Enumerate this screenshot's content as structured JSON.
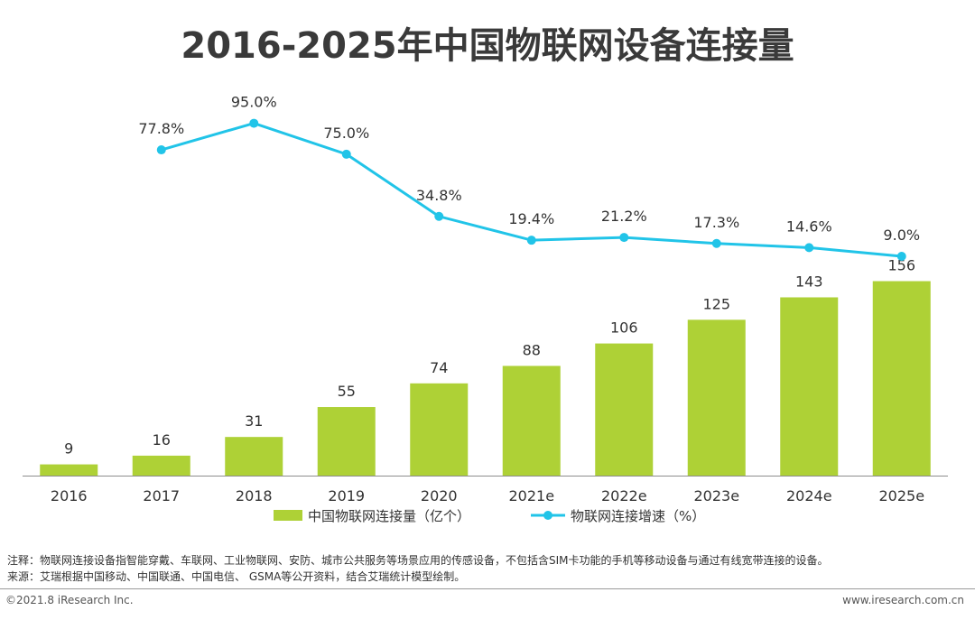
{
  "chart_data": {
    "title": "2016-2025年中国物联网设备连接量",
    "type": "bar+line",
    "categories": [
      "2016",
      "2017",
      "2018",
      "2019",
      "2020",
      "2021e",
      "2022e",
      "2023e",
      "2024e",
      "2025e"
    ],
    "series": [
      {
        "name": "中国物联网连接量（亿个）",
        "type": "bar",
        "color": "#aed136",
        "values": [
          9,
          16,
          31,
          55,
          74,
          88,
          106,
          125,
          143,
          156
        ],
        "labels": [
          "9",
          "16",
          "31",
          "55",
          "74",
          "88",
          "106",
          "125",
          "143",
          "156"
        ]
      },
      {
        "name": "物联网连接增速（%）",
        "type": "line",
        "color": "#21c4e8",
        "values": [
          null,
          77.8,
          95.0,
          75.0,
          34.8,
          19.4,
          21.2,
          17.3,
          14.6,
          9.0
        ],
        "labels": [
          "",
          "77.8%",
          "95.0%",
          "75.0%",
          "34.8%",
          "19.4%",
          "21.2%",
          "17.3%",
          "14.6%",
          "9.0%"
        ]
      }
    ],
    "bar_axis_max": 160,
    "line_axis_range": [
      -110,
      100
    ],
    "legend_position": "bottom"
  },
  "note": "注释：物联网连接设备指智能穿戴、车联网、工业物联网、安防、城市公共服务等场景应用的传感设备，不包括含SIM卡功能的手机等移动设备与通过有线宽带连接的设备。",
  "source": "来源：艾瑞根据中国移动、中国联通、中国电信、 GSMA等公开资料，结合艾瑞统计模型绘制。",
  "copyright": "©2021.8 iResearch Inc.",
  "website": "www.iresearch.com.cn"
}
